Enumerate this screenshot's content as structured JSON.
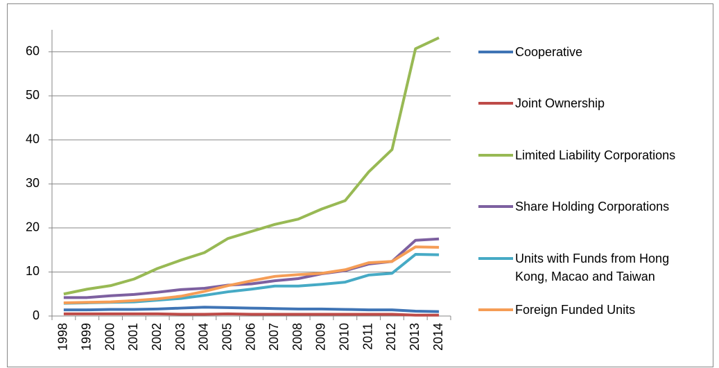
{
  "chart_data": {
    "type": "line",
    "categories": [
      "1998",
      "1999",
      "2000",
      "2001",
      "2002",
      "2003",
      "2004",
      "2005",
      "2006",
      "2007",
      "2008",
      "2009",
      "2010",
      "2011",
      "2012",
      "2013",
      "2014"
    ],
    "series": [
      {
        "name": "Cooperative",
        "color": "#3f74b5",
        "values": [
          1.4,
          1.4,
          1.5,
          1.5,
          1.6,
          1.8,
          2.0,
          1.9,
          1.8,
          1.7,
          1.6,
          1.6,
          1.5,
          1.4,
          1.4,
          1.1,
          1.0
        ]
      },
      {
        "name": "Joint Ownership",
        "color": "#be4b48",
        "values": [
          0.5,
          0.5,
          0.5,
          0.5,
          0.5,
          0.4,
          0.4,
          0.5,
          0.4,
          0.4,
          0.4,
          0.4,
          0.4,
          0.4,
          0.4,
          0.2,
          0.2
        ]
      },
      {
        "name": "Limited Liability Corporations",
        "color": "#98b954",
        "values": [
          5.0,
          6.1,
          6.9,
          8.4,
          10.8,
          12.7,
          14.4,
          17.6,
          19.2,
          20.8,
          22.0,
          24.3,
          26.2,
          32.7,
          37.8,
          60.7,
          63.2
        ]
      },
      {
        "name": "Share Holding Corporations",
        "color": "#7d60a0",
        "values": [
          4.2,
          4.2,
          4.6,
          4.9,
          5.4,
          6.0,
          6.3,
          7.0,
          7.3,
          8.0,
          8.5,
          9.6,
          10.3,
          11.8,
          12.4,
          17.2,
          17.5
        ]
      },
      {
        "name": "Units with Funds from Hong Kong, Macao and Taiwan",
        "color": "#46aac5",
        "values": [
          2.9,
          3.0,
          3.1,
          3.2,
          3.6,
          4.0,
          4.7,
          5.5,
          6.1,
          6.8,
          6.8,
          7.2,
          7.7,
          9.3,
          9.7,
          14.0,
          13.9
        ]
      },
      {
        "name": "Foreign Funded Units",
        "color": "#f59d56",
        "values": [
          3.0,
          3.1,
          3.2,
          3.5,
          3.9,
          4.5,
          5.6,
          6.9,
          8.0,
          9.0,
          9.4,
          9.7,
          10.5,
          12.1,
          12.4,
          15.7,
          15.6
        ]
      }
    ],
    "ylim": [
      0,
      65
    ],
    "yticks": [
      0,
      10,
      20,
      30,
      40,
      50,
      60
    ],
    "grid": true,
    "legend": "right"
  }
}
